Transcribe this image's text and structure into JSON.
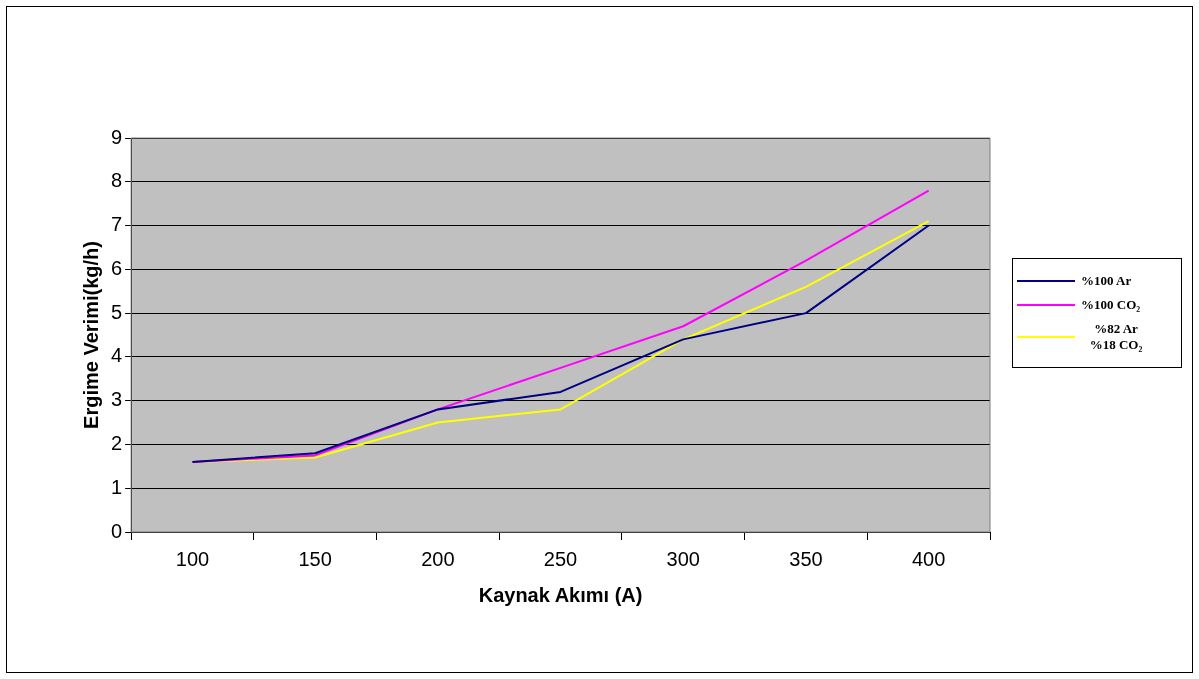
{
  "chart_data": {
    "type": "line",
    "xlabel": "Kaynak Akımı (A)",
    "ylabel": "Ergime Verimi(kg/h)",
    "categories": [
      "100",
      "150",
      "200",
      "250",
      "300",
      "350",
      "400"
    ],
    "series": [
      {
        "name": "%100 Ar",
        "color": "#000080",
        "values": [
          1.6,
          1.8,
          2.8,
          3.2,
          4.4,
          5.0,
          7.0
        ]
      },
      {
        "name": "%100 CO₂",
        "color": "#ff00ff",
        "values": [
          1.6,
          1.75,
          2.8,
          3.75,
          4.7,
          6.2,
          7.8
        ]
      },
      {
        "name": "%82 Ar %18 CO₂",
        "color": "#ffff00",
        "values": [
          1.6,
          1.7,
          2.5,
          2.8,
          4.4,
          5.6,
          7.1
        ]
      }
    ],
    "ylim": [
      0,
      9
    ],
    "yticks": [
      0,
      1,
      2,
      3,
      4,
      5,
      6,
      7,
      8,
      9
    ],
    "grid": "y",
    "legend": "right",
    "marker": "none",
    "line_style": "solid"
  }
}
